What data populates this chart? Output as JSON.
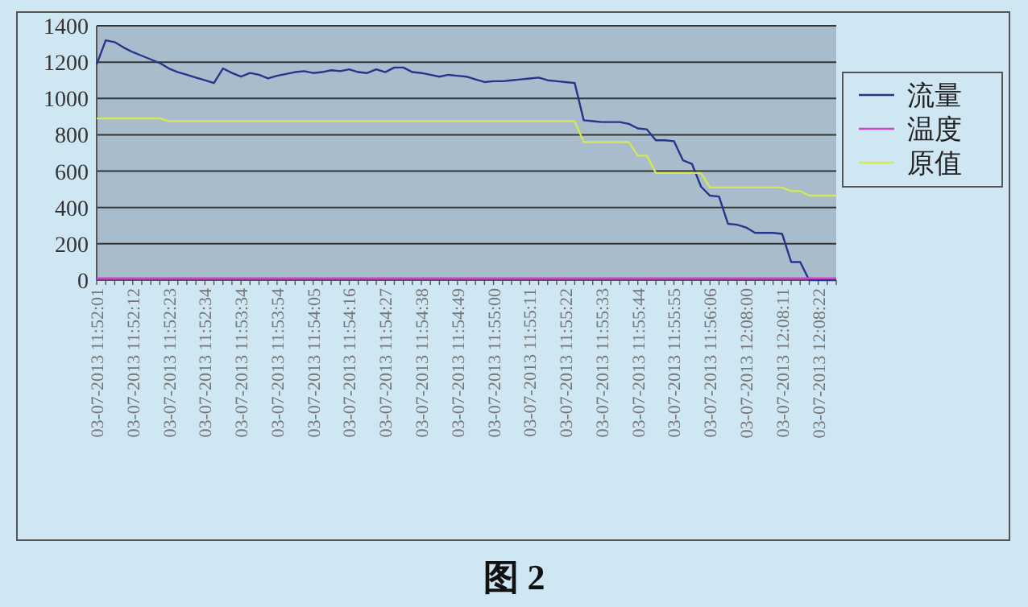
{
  "chart_data": {
    "type": "line",
    "categories": [
      "03-07-2013 11:52:01",
      null,
      null,
      null,
      "03-07-2013 11:52:12",
      null,
      null,
      null,
      "03-07-2013 11:52:23",
      null,
      null,
      null,
      "03-07-2013 11:52:34",
      null,
      null,
      null,
      "03-07-2013 11:53:34",
      null,
      null,
      null,
      "03-07-2013 11:53:54",
      null,
      null,
      null,
      "03-07-2013 11:54:05",
      null,
      null,
      null,
      "03-07-2013 11:54:16",
      null,
      null,
      null,
      "03-07-2013 11:54:27",
      null,
      null,
      null,
      "03-07-2013 11:54:38",
      null,
      null,
      null,
      "03-07-2013 11:54:49",
      null,
      null,
      null,
      "03-07-2013 11:55:00",
      null,
      null,
      null,
      "03-07-2013 11:55:11",
      null,
      null,
      null,
      "03-07-2013 11:55:22",
      null,
      null,
      null,
      "03-07-2013 11:55:33",
      null,
      null,
      null,
      "03-07-2013 11:55:44",
      null,
      null,
      null,
      "03-07-2013 11:55:55",
      null,
      null,
      null,
      "03-07-2013 11:56:06",
      null,
      null,
      null,
      "03-07-2013 12:08:00",
      null,
      null,
      null,
      "03-07-2013 12:08:11",
      null,
      null,
      null,
      "03-07-2013 12:08:22",
      null,
      null
    ],
    "series": [
      {
        "name": "流量",
        "color": "#27348b",
        "values": [
          1187,
          1320,
          1310,
          1280,
          1255,
          1235,
          1215,
          1195,
          1165,
          1145,
          1130,
          1115,
          1100,
          1085,
          1165,
          1140,
          1120,
          1140,
          1130,
          1110,
          1125,
          1135,
          1145,
          1150,
          1140,
          1145,
          1155,
          1150,
          1160,
          1145,
          1140,
          1160,
          1145,
          1170,
          1170,
          1145,
          1140,
          1130,
          1120,
          1130,
          1125,
          1120,
          1105,
          1090,
          1095,
          1095,
          1100,
          1105,
          1110,
          1115,
          1100,
          1095,
          1090,
          1085,
          880,
          875,
          870,
          870,
          870,
          860,
          835,
          830,
          770,
          770,
          765,
          660,
          640,
          515,
          465,
          460,
          310,
          305,
          290,
          260,
          260,
          260,
          255,
          100,
          100,
          0,
          0,
          0,
          0
        ]
      },
      {
        "name": "温度",
        "color": "#cc44cc",
        "values": [
          10,
          10,
          10,
          10,
          10,
          10,
          10,
          10,
          10,
          10,
          10,
          10,
          10,
          10,
          10,
          10,
          10,
          10,
          10,
          10,
          10,
          10,
          10,
          10,
          10,
          10,
          10,
          10,
          10,
          10,
          10,
          10,
          10,
          10,
          10,
          10,
          10,
          10,
          10,
          10,
          10,
          10,
          10,
          10,
          10,
          10,
          10,
          10,
          10,
          10,
          10,
          10,
          10,
          10,
          10,
          10,
          10,
          10,
          10,
          10,
          10,
          10,
          10,
          10,
          10,
          10,
          10,
          10,
          10,
          10,
          10,
          10,
          10,
          10,
          10,
          10,
          10,
          10,
          10,
          10,
          10,
          10,
          10
        ]
      },
      {
        "name": "原值",
        "color": "#d4e65a",
        "values": [
          890,
          890,
          890,
          890,
          890,
          890,
          890,
          890,
          875,
          875,
          875,
          875,
          875,
          875,
          875,
          875,
          875,
          875,
          875,
          875,
          875,
          875,
          875,
          875,
          875,
          875,
          875,
          875,
          875,
          875,
          875,
          875,
          875,
          875,
          875,
          875,
          875,
          875,
          875,
          875,
          875,
          875,
          875,
          875,
          875,
          875,
          875,
          875,
          875,
          875,
          875,
          875,
          875,
          875,
          760,
          760,
          760,
          760,
          760,
          760,
          685,
          685,
          590,
          590,
          590,
          590,
          590,
          590,
          510,
          510,
          510,
          510,
          510,
          510,
          510,
          510,
          510,
          490,
          490,
          465,
          465,
          465,
          465
        ]
      }
    ],
    "ylim": [
      0,
      1400
    ],
    "yticks": [
      0,
      200,
      400,
      600,
      800,
      1000,
      1200,
      1400
    ],
    "grid": "y",
    "legend": "right",
    "annotations": [
      "图 2"
    ]
  }
}
